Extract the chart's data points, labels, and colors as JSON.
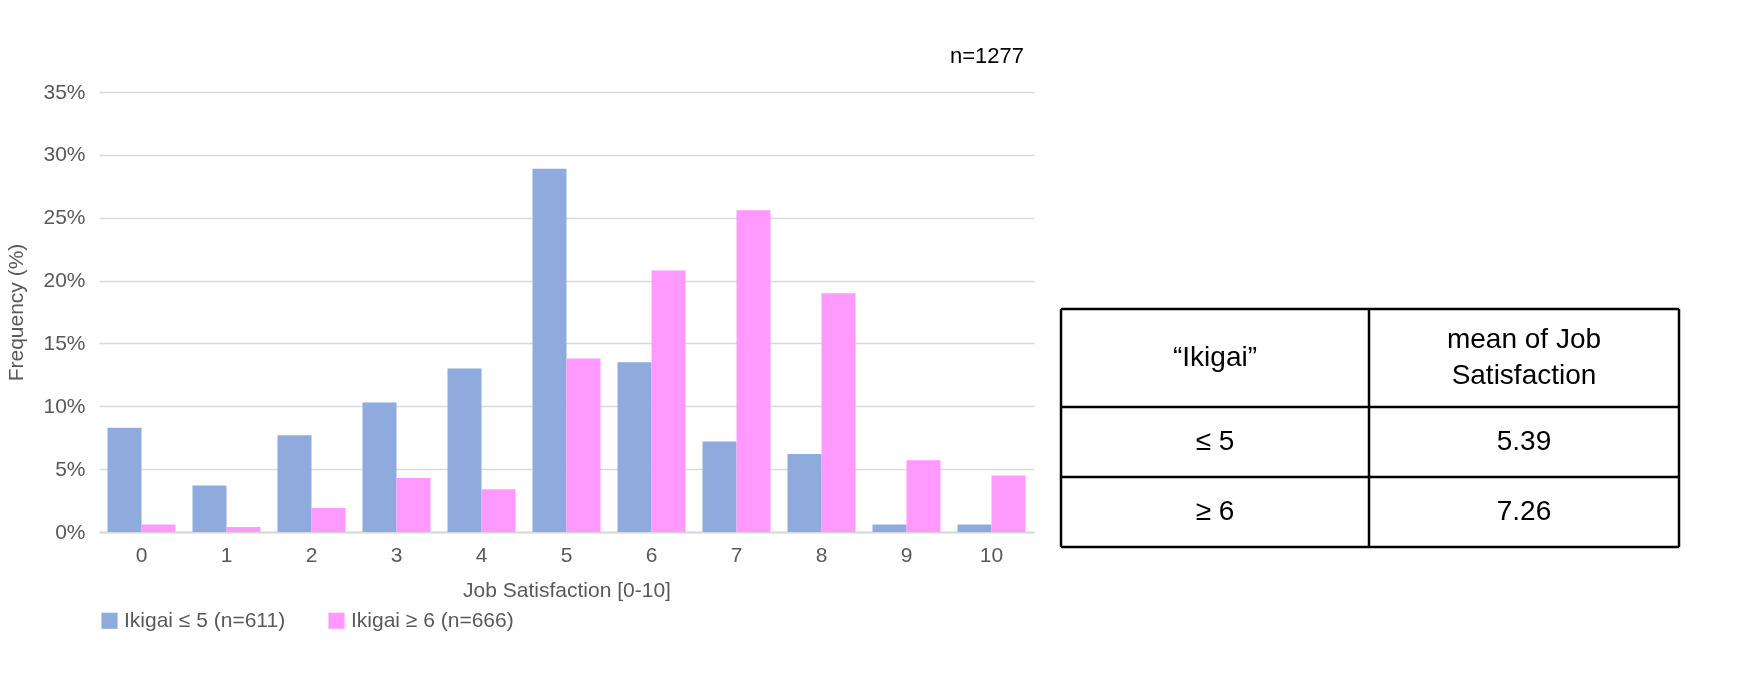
{
  "chart_data": [
    {
      "type": "bar",
      "xlabel": "Job Satisfaction [0-10]",
      "ylabel": "Frequency (%)",
      "categories": [
        "0",
        "1",
        "2",
        "3",
        "4",
        "5",
        "6",
        "7",
        "8",
        "9",
        "10"
      ],
      "series": [
        {
          "name": "Ikigai ≤ 5 (n=611)",
          "color": "#8faadc",
          "values": [
            8.3,
            3.7,
            7.7,
            10.3,
            13.0,
            28.9,
            13.5,
            7.2,
            6.2,
            0.6,
            0.6
          ]
        },
        {
          "name": "Ikigai ≥ 6 (n=666)",
          "color": "#ff99ff",
          "values": [
            0.6,
            0.4,
            1.9,
            4.3,
            3.4,
            13.8,
            20.8,
            25.6,
            19.0,
            5.7,
            4.5
          ]
        }
      ],
      "ylim": [
        0,
        35
      ],
      "yticks": [
        {
          "value": 0,
          "label": "0%"
        },
        {
          "value": 5,
          "label": "5%"
        },
        {
          "value": 10,
          "label": "10%"
        },
        {
          "value": 15,
          "label": "15%"
        },
        {
          "value": 20,
          "label": "20%"
        },
        {
          "value": 25,
          "label": "25%"
        },
        {
          "value": 30,
          "label": "30%"
        },
        {
          "value": 35,
          "label": "35%"
        }
      ],
      "grid": "y",
      "legend": "bottom",
      "annotations": [
        "n=1277"
      ]
    },
    {
      "type": "other",
      "annotations": [
        "“Ikigai”",
        "mean of Job Satisfaction",
        "≤ 5",
        "5.39",
        "≥ 6",
        "7.26"
      ]
    }
  ]
}
